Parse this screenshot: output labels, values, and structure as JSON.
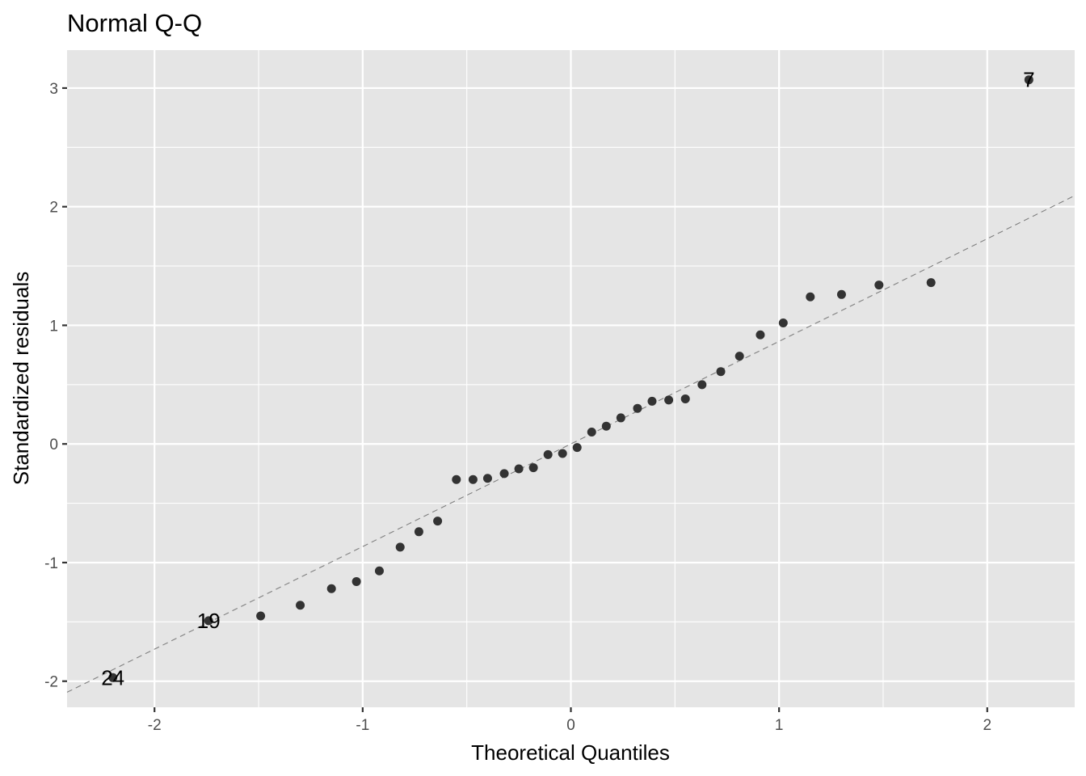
{
  "chart_data": {
    "type": "scatter",
    "title": "Normal Q-Q",
    "xlabel": "Theoretical Quantiles",
    "ylabel": "Standardized residuals",
    "xlim": [
      -2.42,
      2.42
    ],
    "ylim": [
      -2.22,
      3.32
    ],
    "x_ticks": [
      -2,
      -1,
      0,
      1,
      2
    ],
    "x_tick_labels": [
      "-2",
      "-1",
      "0",
      "1",
      "2"
    ],
    "y_ticks": [
      -2,
      -1,
      0,
      1,
      2,
      3
    ],
    "y_tick_labels": [
      "-2",
      "-1",
      "0",
      "1",
      "2",
      "3"
    ],
    "grid": true,
    "colors": {
      "panel": "#e5e5e5",
      "grid": "#ffffff",
      "point": "#333333",
      "reference_line": "#7f7f7f"
    },
    "reference_line": {
      "style": "dashed",
      "intercept": 0.0,
      "slope": 0.865
    },
    "points": [
      {
        "x": -2.2,
        "y": -1.97
      },
      {
        "x": -1.74,
        "y": -1.49
      },
      {
        "x": -1.49,
        "y": -1.45
      },
      {
        "x": -1.3,
        "y": -1.36
      },
      {
        "x": -1.15,
        "y": -1.22
      },
      {
        "x": -1.03,
        "y": -1.16
      },
      {
        "x": -0.92,
        "y": -1.07
      },
      {
        "x": -0.82,
        "y": -0.87
      },
      {
        "x": -0.73,
        "y": -0.74
      },
      {
        "x": -0.64,
        "y": -0.65
      },
      {
        "x": -0.55,
        "y": -0.3
      },
      {
        "x": -0.47,
        "y": -0.3
      },
      {
        "x": -0.4,
        "y": -0.29
      },
      {
        "x": -0.32,
        "y": -0.25
      },
      {
        "x": -0.25,
        "y": -0.21
      },
      {
        "x": -0.18,
        "y": -0.2
      },
      {
        "x": -0.11,
        "y": -0.09
      },
      {
        "x": -0.04,
        "y": -0.08
      },
      {
        "x": 0.03,
        "y": -0.03
      },
      {
        "x": 0.1,
        "y": 0.1
      },
      {
        "x": 0.17,
        "y": 0.15
      },
      {
        "x": 0.24,
        "y": 0.22
      },
      {
        "x": 0.32,
        "y": 0.3
      },
      {
        "x": 0.39,
        "y": 0.36
      },
      {
        "x": 0.47,
        "y": 0.37
      },
      {
        "x": 0.55,
        "y": 0.38
      },
      {
        "x": 0.63,
        "y": 0.5
      },
      {
        "x": 0.72,
        "y": 0.61
      },
      {
        "x": 0.81,
        "y": 0.74
      },
      {
        "x": 0.91,
        "y": 0.92
      },
      {
        "x": 1.02,
        "y": 1.02
      },
      {
        "x": 1.15,
        "y": 1.24
      },
      {
        "x": 1.3,
        "y": 1.26
      },
      {
        "x": 1.48,
        "y": 1.34
      },
      {
        "x": 1.73,
        "y": 1.36
      },
      {
        "x": 2.2,
        "y": 3.07
      }
    ],
    "point_labels": [
      {
        "text": "7",
        "x": 2.2,
        "y": 3.07
      },
      {
        "text": "19",
        "x": -1.74,
        "y": -1.49
      },
      {
        "text": "24",
        "x": -2.2,
        "y": -1.97
      }
    ]
  }
}
